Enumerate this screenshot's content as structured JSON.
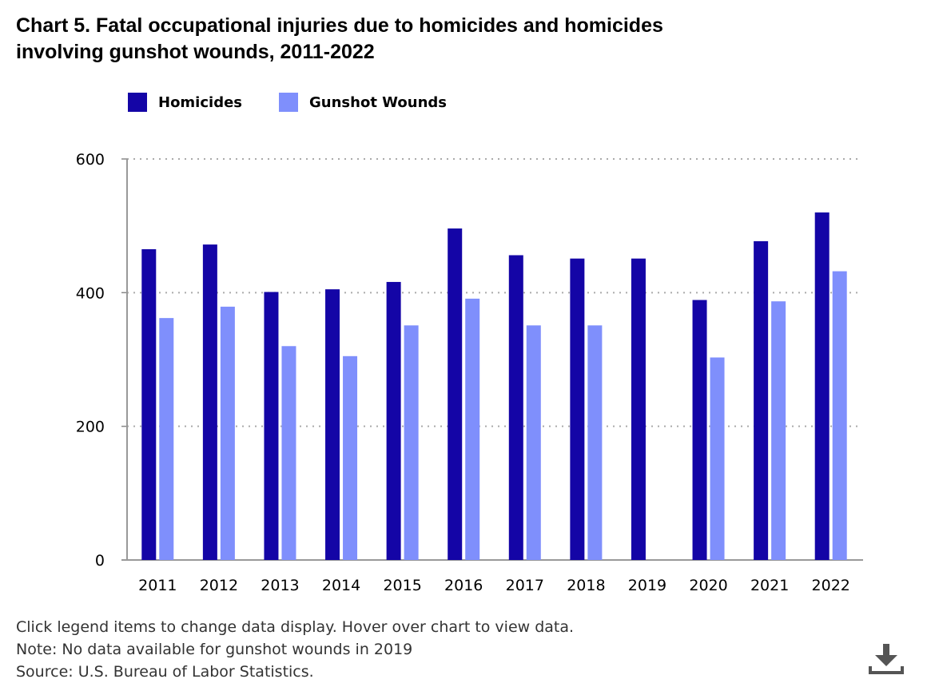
{
  "title_line1": "Chart 5. Fatal occupational injuries due to homicides and homicides",
  "title_line2": "involving gunshot wounds, 2011-2022",
  "legend": [
    {
      "label": "Homicides",
      "color": "#1405a6"
    },
    {
      "label": "Gunshot Wounds",
      "color": "#7f8ffc"
    }
  ],
  "notes": {
    "instruction": "Click legend items to change data display. Hover over chart to view data.",
    "note": "Note: No data available for gunshot wounds in 2019",
    "source": "Source: U.S. Bureau of Labor Statistics."
  },
  "download_icon": "download-icon",
  "chart_data": {
    "type": "bar",
    "title": "Fatal occupational injuries due to homicides and homicides involving gunshot wounds, 2011-2022",
    "xlabel": "",
    "ylabel": "",
    "ylim": [
      0,
      600
    ],
    "yticks": [
      0,
      200,
      400,
      600
    ],
    "grid": true,
    "legend_position": "top-left",
    "categories": [
      "2011",
      "2012",
      "2013",
      "2014",
      "2015",
      "2016",
      "2017",
      "2018",
      "2019",
      "2020",
      "2021",
      "2022"
    ],
    "series": [
      {
        "name": "Homicides",
        "color": "#1405a6",
        "values": [
          465,
          472,
          401,
          405,
          416,
          496,
          456,
          451,
          451,
          389,
          477,
          520
        ]
      },
      {
        "name": "Gunshot Wounds",
        "color": "#7f8ffc",
        "values": [
          362,
          379,
          320,
          305,
          351,
          391,
          351,
          351,
          null,
          303,
          387,
          432
        ]
      }
    ]
  }
}
